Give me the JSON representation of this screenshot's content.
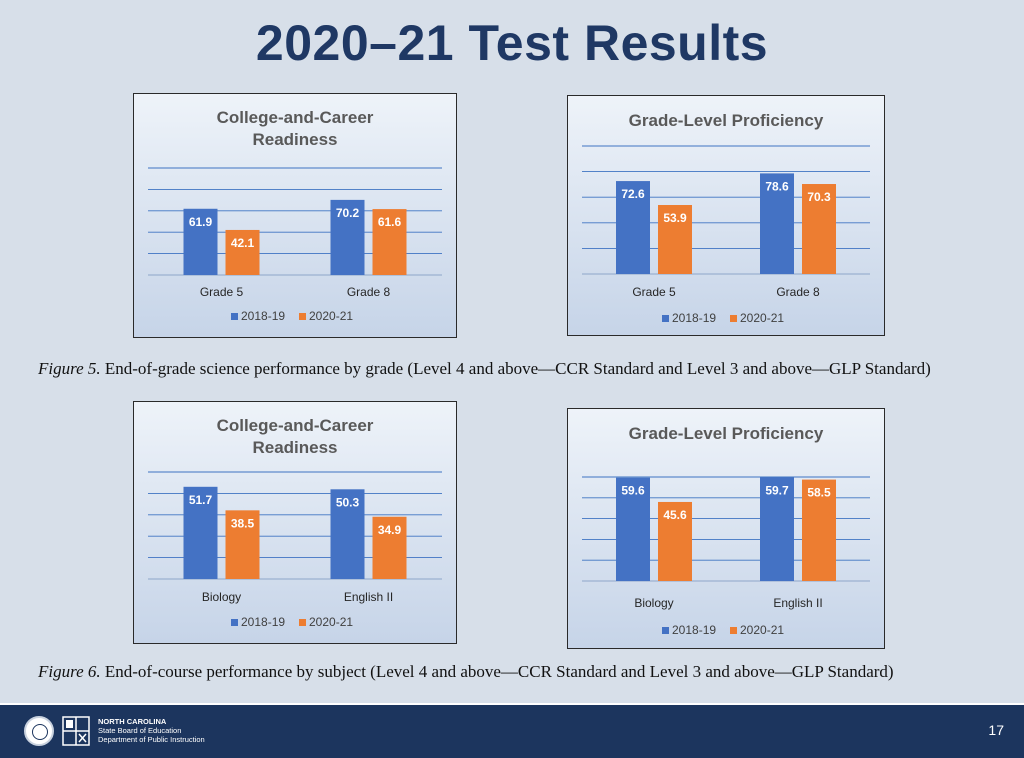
{
  "title": "2020–21 Test Results",
  "colors": {
    "series_2018": "#4472c4",
    "series_2020": "#ed7d31",
    "title_navy": "#1f3864",
    "footer_bg": "#1c355e"
  },
  "chart_data": [
    {
      "type": "bar",
      "title_lines": [
        "College-and-Career",
        "Readiness"
      ],
      "categories": [
        "Grade 5",
        "Grade 8"
      ],
      "series": [
        {
          "name": "2018-19",
          "values": [
            61.9,
            70.2
          ]
        },
        {
          "name": "2020-21",
          "values": [
            42.1,
            61.6
          ]
        }
      ],
      "ylim": [
        0,
        100
      ],
      "grid": true,
      "legend": "bottom"
    },
    {
      "type": "bar",
      "title_lines": [
        "Grade-Level Proficiency"
      ],
      "categories": [
        "Grade 5",
        "Grade 8"
      ],
      "series": [
        {
          "name": "2018-19",
          "values": [
            72.6,
            78.6
          ]
        },
        {
          "name": "2020-21",
          "values": [
            53.9,
            70.3
          ]
        }
      ],
      "ylim": [
        0,
        100
      ],
      "grid": true,
      "legend": "bottom"
    },
    {
      "type": "bar",
      "title_lines": [
        "College-and-Career",
        "Readiness"
      ],
      "categories": [
        "Biology",
        "English II"
      ],
      "series": [
        {
          "name": "2018-19",
          "values": [
            51.7,
            50.3
          ]
        },
        {
          "name": "2020-21",
          "values": [
            38.5,
            34.9
          ]
        }
      ],
      "ylim": [
        0,
        60
      ],
      "grid": true,
      "legend": "bottom"
    },
    {
      "type": "bar",
      "title_lines": [
        "Grade-Level Proficiency"
      ],
      "categories": [
        "Biology",
        "English II"
      ],
      "series": [
        {
          "name": "2018-19",
          "values": [
            59.6,
            59.7
          ]
        },
        {
          "name": "2020-21",
          "values": [
            45.6,
            58.5
          ]
        }
      ],
      "ylim": [
        0,
        60
      ],
      "grid": true,
      "legend": "bottom"
    }
  ],
  "captions": [
    {
      "figure": "Figure 5.",
      "text": " End-of-grade science performance by grade (Level 4 and above—CCR Standard and Level 3 and above—GLP Standard)"
    },
    {
      "figure": "Figure 6.",
      "text": " End-of-course performance by subject (Level 4 and above—CCR Standard and Level 3 and above—GLP Standard)"
    }
  ],
  "footer": {
    "org_line1": "NORTH CAROLINA",
    "org_line2": "State Board of Education",
    "org_line3": "Department of Public Instruction",
    "page_number": "17"
  }
}
